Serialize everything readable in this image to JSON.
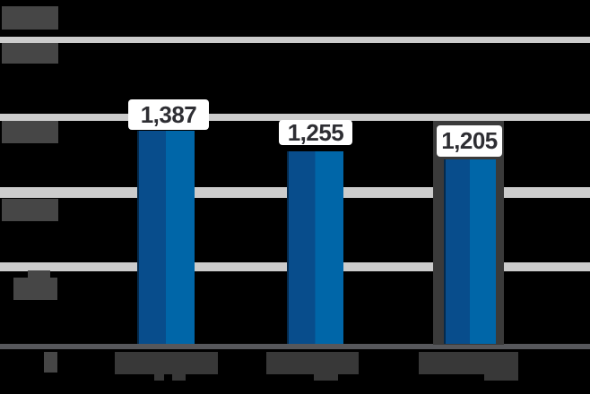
{
  "chart_data": {
    "type": "bar",
    "title": "",
    "categories": [
      "",
      "",
      ""
    ],
    "categories_note": "x-axis category labels are rendered as illegible dark redacted blocks",
    "values": [
      1387,
      1255,
      1205
    ],
    "value_labels": [
      "1,387",
      "1,255",
      "1,205"
    ],
    "xlabel": "",
    "ylabel": "",
    "ylim": [
      0,
      2500
    ],
    "y_gridline_interval": 500,
    "y_axis_note": "y-axis tick labels are rendered as illegible dark redacted blocks (0 to 2500 estimated from gridlines)",
    "grid": true,
    "legend": false,
    "highlighted_bar_index": 2
  },
  "colors": {
    "background": "#000000",
    "gridline": "#cccccc",
    "axis_line": "#56575b",
    "redacted_block": "#464646",
    "redacted_block_bottom": "#383838",
    "bar_dark_half": "#084d8c",
    "bar_light_half": "#0066a8",
    "highlight_frame": "#3a3a3a",
    "value_label_bg": "#ffffff",
    "value_label_text": "#2e2e33"
  }
}
